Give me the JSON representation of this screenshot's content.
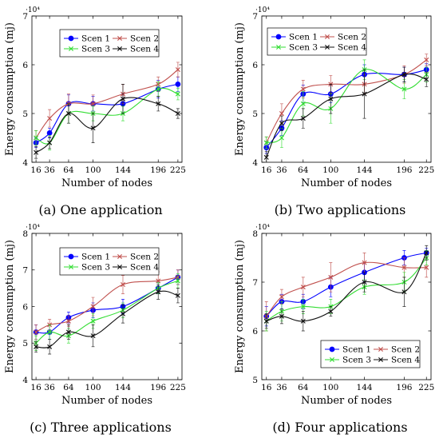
{
  "chart_data": [
    {
      "type": "line",
      "caption": "(a) One application",
      "xlabel": "Number of nodes",
      "ylabel": "Energy consumption (mj)",
      "y_exponent": "·10⁴",
      "x": [
        16,
        36,
        64,
        100,
        144,
        196,
        225
      ],
      "xlim": [
        10,
        231
      ],
      "ylim": [
        4,
        7
      ],
      "yticks": [
        4,
        5,
        6,
        7
      ],
      "series": [
        {
          "name": "Scen 1",
          "color": "#0000ff",
          "marker": "circle",
          "values": [
            4.4,
            4.6,
            5.2,
            5.2,
            5.2,
            5.5,
            5.6
          ],
          "err": [
            0.1,
            0.1,
            0.18,
            0.15,
            0.2,
            0.18,
            0.15
          ]
        },
        {
          "name": "Scen 2",
          "color": "#c0504d",
          "marker": "cross",
          "values": [
            4.5,
            4.9,
            5.2,
            5.2,
            5.4,
            5.6,
            5.9
          ],
          "err": [
            0.15,
            0.18,
            0.2,
            0.18,
            0.2,
            0.15,
            0.15
          ]
        },
        {
          "name": "Scen 3",
          "color": "#33dd33",
          "marker": "cross",
          "values": [
            4.5,
            4.4,
            5.0,
            5.0,
            5.0,
            5.5,
            5.4
          ],
          "err": [
            0.15,
            0.15,
            0.2,
            0.15,
            0.15,
            0.15,
            0.12
          ]
        },
        {
          "name": "Scen 4",
          "color": "#111111",
          "marker": "cross",
          "values": [
            4.2,
            4.4,
            5.0,
            4.7,
            5.3,
            5.2,
            5.0
          ],
          "err": [
            0.12,
            0.12,
            0.2,
            0.3,
            0.3,
            0.15,
            0.1
          ]
        }
      ],
      "legend": "top-left"
    },
    {
      "type": "line",
      "caption": "(b) Two applications",
      "xlabel": "Number of nodes",
      "ylabel": "Energy consumption (mj)",
      "y_exponent": "·10⁴",
      "x": [
        16,
        36,
        64,
        100,
        144,
        196,
        225
      ],
      "xlim": [
        10,
        231
      ],
      "ylim": [
        4,
        7
      ],
      "yticks": [
        4,
        5,
        6,
        7
      ],
      "series": [
        {
          "name": "Scen 1",
          "color": "#0000ff",
          "marker": "circle",
          "values": [
            4.3,
            4.7,
            5.4,
            5.4,
            5.8,
            5.8,
            5.9
          ],
          "err": [
            0.12,
            0.15,
            0.18,
            0.18,
            0.2,
            0.15,
            0.12
          ]
        },
        {
          "name": "Scen 2",
          "color": "#c0504d",
          "marker": "cross",
          "values": [
            4.4,
            5.0,
            5.5,
            5.6,
            5.6,
            5.8,
            6.1
          ],
          "err": [
            0.12,
            0.2,
            0.18,
            0.18,
            0.2,
            0.18,
            0.12
          ]
        },
        {
          "name": "Scen 3",
          "color": "#33dd33",
          "marker": "cross",
          "values": [
            4.4,
            4.5,
            5.2,
            5.1,
            5.9,
            5.5,
            5.8
          ],
          "err": [
            0.12,
            0.2,
            0.25,
            0.3,
            0.2,
            0.2,
            0.15
          ]
        },
        {
          "name": "Scen 4",
          "color": "#111111",
          "marker": "cross",
          "values": [
            4.1,
            4.8,
            4.9,
            5.3,
            5.4,
            5.8,
            5.7
          ],
          "err": [
            0.12,
            0.15,
            0.2,
            0.3,
            0.5,
            0.15,
            0.15
          ]
        }
      ],
      "legend": "top-left"
    },
    {
      "type": "line",
      "caption": "(c) Three applications",
      "xlabel": "Number of nodes",
      "ylabel": "Energy consumption (mj)",
      "y_exponent": "·10⁴",
      "x": [
        16,
        36,
        64,
        100,
        144,
        196,
        225
      ],
      "xlim": [
        10,
        231
      ],
      "ylim": [
        4,
        8
      ],
      "yticks": [
        4,
        5,
        6,
        7,
        8
      ],
      "series": [
        {
          "name": "Scen 1",
          "color": "#0000ff",
          "marker": "circle",
          "values": [
            5.3,
            5.3,
            5.7,
            5.9,
            6.0,
            6.5,
            6.8
          ],
          "err": [
            0.2,
            0.2,
            0.15,
            0.2,
            0.2,
            0.15,
            0.2
          ]
        },
        {
          "name": "Scen 2",
          "color": "#c0504d",
          "marker": "cross",
          "values": [
            5.3,
            5.5,
            5.6,
            6.0,
            6.6,
            6.7,
            6.8
          ],
          "err": [
            0.2,
            0.15,
            0.15,
            0.25,
            0.25,
            0.25,
            0.2
          ]
        },
        {
          "name": "Scen 3",
          "color": "#33dd33",
          "marker": "cross",
          "values": [
            5.0,
            5.3,
            5.2,
            5.6,
            5.9,
            6.5,
            6.7
          ],
          "err": [
            0.2,
            0.2,
            0.2,
            0.2,
            0.2,
            0.15,
            0.2
          ]
        },
        {
          "name": "Scen 4",
          "color": "#111111",
          "marker": "cross",
          "values": [
            4.9,
            4.9,
            5.3,
            5.2,
            5.8,
            6.4,
            6.3
          ],
          "err": [
            0.15,
            0.2,
            0.2,
            0.3,
            0.25,
            0.2,
            0.2
          ]
        }
      ],
      "legend": "top-left"
    },
    {
      "type": "line",
      "caption": "(d) Four applications",
      "xlabel": "Number of nodes",
      "ylabel": "Energy consumption (mj)",
      "y_exponent": "·10⁴",
      "x": [
        16,
        36,
        64,
        100,
        144,
        196,
        225
      ],
      "xlim": [
        10,
        231
      ],
      "ylim": [
        5,
        8
      ],
      "yticks": [
        5,
        6,
        7,
        8
      ],
      "series": [
        {
          "name": "Scen 1",
          "color": "#0000ff",
          "marker": "circle",
          "values": [
            6.3,
            6.6,
            6.6,
            6.9,
            7.2,
            7.5,
            7.6
          ],
          "err": [
            0.2,
            0.15,
            0.15,
            0.2,
            0.2,
            0.15,
            0.1
          ]
        },
        {
          "name": "Scen 2",
          "color": "#c0504d",
          "marker": "cross",
          "values": [
            6.3,
            6.7,
            6.9,
            7.1,
            7.4,
            7.3,
            7.3
          ],
          "err": [
            0.3,
            0.15,
            0.2,
            0.3,
            0.2,
            0.2,
            0.2
          ]
        },
        {
          "name": "Scen 3",
          "color": "#33dd33",
          "marker": "cross",
          "values": [
            6.2,
            6.4,
            6.5,
            6.5,
            6.9,
            7.0,
            7.5
          ],
          "err": [
            0.2,
            0.2,
            0.15,
            0.15,
            0.15,
            0.2,
            0.15
          ]
        },
        {
          "name": "Scen 4",
          "color": "#111111",
          "marker": "cross",
          "values": [
            6.2,
            6.3,
            6.2,
            6.4,
            7.0,
            6.8,
            7.6
          ],
          "err": [
            0.15,
            0.15,
            0.2,
            0.1,
            0.2,
            0.3,
            0.15
          ]
        }
      ],
      "legend": "bottom-right"
    }
  ]
}
